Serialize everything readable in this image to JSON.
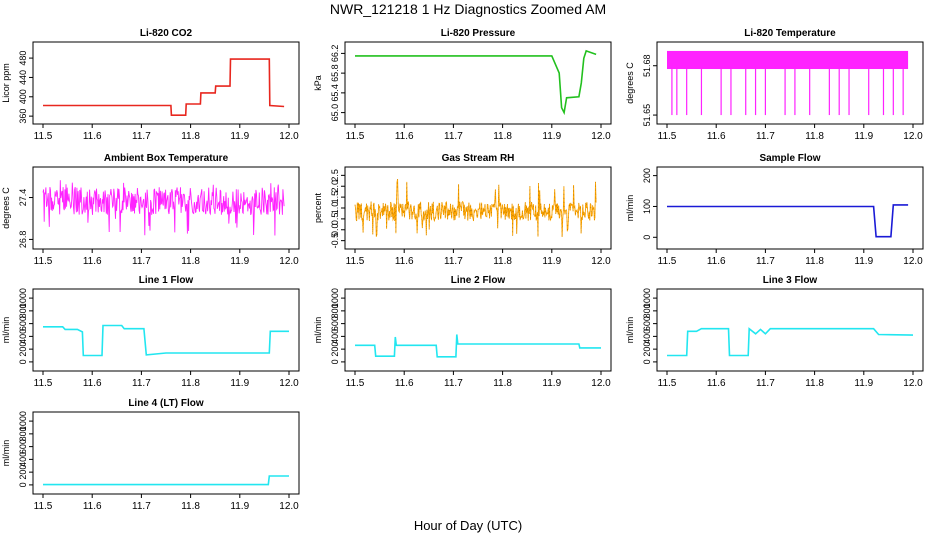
{
  "page": {
    "title": "NWR_121218  1 Hz Diagnostics Zoomed AM",
    "xlabel": "Hour of Day (UTC)"
  },
  "chart_data": [
    {
      "type": "line",
      "title": "Li-820 CO2",
      "ylabel": "Licor ppm",
      "color": "#e8271f",
      "xlim": [
        11.5,
        12.0
      ],
      "xticks": [
        11.5,
        11.6,
        11.7,
        11.8,
        11.9,
        12.0
      ],
      "ylim": [
        352,
        505
      ],
      "yticks": [
        360,
        400,
        440,
        480
      ],
      "x": [
        11.5,
        11.76,
        11.761,
        11.79,
        11.791,
        11.82,
        11.821,
        11.85,
        11.851,
        11.88,
        11.881,
        11.96,
        11.961,
        11.99
      ],
      "y": [
        382,
        382,
        362,
        362,
        385,
        385,
        408,
        408,
        422,
        422,
        478,
        478,
        382,
        380
      ]
    },
    {
      "type": "line",
      "title": "Li-820 Pressure",
      "ylabel": "kPa",
      "color": "#22c01e",
      "xlim": [
        11.5,
        12.0
      ],
      "xticks": [
        11.5,
        11.6,
        11.7,
        11.8,
        11.9,
        12.0
      ],
      "ylim": [
        64.85,
        66.35
      ],
      "yticks": [
        65.0,
        65.4,
        65.8,
        66.2
      ],
      "tick_labels": [
        "65.0",
        "65.4",
        "65.8",
        "66.2"
      ],
      "x": [
        11.5,
        11.9,
        11.915,
        11.92,
        11.925,
        11.93,
        11.955,
        11.96,
        11.965,
        11.97,
        11.99
      ],
      "y": [
        66.15,
        66.15,
        65.8,
        65.1,
        65.0,
        65.3,
        65.32,
        65.6,
        66.1,
        66.25,
        66.18
      ]
    },
    {
      "type": "line",
      "title": "Li-820 Temperature",
      "ylabel": "degrees C",
      "color": "#ff22ff",
      "xlim": [
        11.5,
        12.0
      ],
      "xticks": [
        11.5,
        11.6,
        11.7,
        11.8,
        11.9,
        12.0
      ],
      "ylim": [
        51.647,
        51.692
      ],
      "yticks": [
        51.65,
        51.68
      ],
      "tick_labels": [
        "51.65",
        "51.68"
      ],
      "x": [
        11.5,
        11.99
      ],
      "band_y": [
        51.678,
        51.689
      ],
      "dip_y": 51.65,
      "dip_x": [
        11.51,
        11.52,
        11.54,
        11.57,
        11.61,
        11.63,
        11.66,
        11.68,
        11.7,
        11.74,
        11.76,
        11.79,
        11.83,
        11.85,
        11.87,
        11.91,
        11.94,
        11.96,
        11.98
      ]
    },
    {
      "type": "line",
      "title": "Ambient Box Temperature",
      "ylabel": "degrees C",
      "color": "#ff22ff",
      "xlim": [
        11.5,
        12.0
      ],
      "xticks": [
        11.5,
        11.6,
        11.7,
        11.8,
        11.9,
        12.0
      ],
      "ylim": [
        26.72,
        27.78
      ],
      "yticks": [
        26.8,
        27.4
      ],
      "tick_labels": [
        "26.8",
        "27.4"
      ],
      "x": [
        11.5,
        11.99
      ],
      "band_y": [
        27.15,
        27.55
      ],
      "mean": 27.35,
      "min_y": 26.85,
      "max_y": 27.65
    },
    {
      "type": "line",
      "title": "Gas Stream RH",
      "ylabel": "percent",
      "color": "#ffa500",
      "xlim": [
        11.5,
        12.0
      ],
      "xticks": [
        11.5,
        11.6,
        11.7,
        11.8,
        11.9,
        12.0
      ],
      "ylim": [
        -0.7,
        2.7
      ],
      "yticks": [
        -0.5,
        0.0,
        0.5,
        1.0,
        1.5,
        2.0,
        2.5
      ],
      "tick_labels": [
        "-0.5",
        "0.0",
        "0.5",
        "1.0",
        "1.5",
        "2.0",
        "2.5"
      ],
      "x": [
        11.5,
        11.99
      ],
      "band_y": [
        0.4,
        1.3
      ],
      "mean": 0.85,
      "min_y": -0.4,
      "max_y": 2.4
    },
    {
      "type": "line",
      "title": "Sample Flow",
      "ylabel": "ml/min",
      "color": "#1a1ad6",
      "xlim": [
        11.5,
        12.0
      ],
      "xticks": [
        11.5,
        11.6,
        11.7,
        11.8,
        11.9,
        12.0
      ],
      "ylim": [
        -25,
        215
      ],
      "yticks": [
        0,
        100,
        200
      ],
      "x": [
        11.5,
        11.92,
        11.925,
        11.955,
        11.96,
        11.99
      ],
      "y": [
        100,
        100,
        2,
        2,
        105,
        105
      ]
    },
    {
      "type": "line",
      "title": "Line 1 Flow",
      "ylabel": "ml/min",
      "color": "#22e6f0",
      "xlim": [
        11.5,
        12.0
      ],
      "xticks": [
        11.5,
        11.6,
        11.7,
        11.8,
        11.9,
        12.0
      ],
      "ylim": [
        -80,
        1080
      ],
      "yticks": [
        0,
        200,
        400,
        600,
        800,
        1000
      ],
      "x": [
        11.5,
        11.54,
        11.545,
        11.57,
        11.58,
        11.582,
        11.62,
        11.622,
        11.66,
        11.665,
        11.705,
        11.71,
        11.75,
        11.96,
        11.962,
        12.0
      ],
      "y": [
        550,
        550,
        510,
        510,
        470,
        100,
        100,
        570,
        570,
        520,
        520,
        110,
        140,
        140,
        480,
        480
      ]
    },
    {
      "type": "line",
      "title": "Line 2 Flow",
      "ylabel": "ml/min",
      "color": "#22e6f0",
      "xlim": [
        11.5,
        12.0
      ],
      "xticks": [
        11.5,
        11.6,
        11.7,
        11.8,
        11.9,
        12.0
      ],
      "ylim": [
        -80,
        1080
      ],
      "yticks": [
        0,
        200,
        400,
        600,
        800,
        1000
      ],
      "x": [
        11.5,
        11.54,
        11.542,
        11.58,
        11.582,
        11.584,
        11.665,
        11.667,
        11.705,
        11.707,
        11.709,
        11.955,
        11.957,
        12.0
      ],
      "y": [
        260,
        260,
        90,
        90,
        390,
        260,
        260,
        80,
        80,
        430,
        280,
        280,
        220,
        220
      ]
    },
    {
      "type": "line",
      "title": "Line 3 Flow",
      "ylabel": "ml/min",
      "color": "#22e6f0",
      "xlim": [
        11.5,
        12.0
      ],
      "xticks": [
        11.5,
        11.6,
        11.7,
        11.8,
        11.9,
        12.0
      ],
      "ylim": [
        -80,
        1080
      ],
      "yticks": [
        0,
        200,
        400,
        600,
        800,
        1000
      ],
      "x": [
        11.5,
        11.54,
        11.542,
        11.56,
        11.57,
        11.625,
        11.627,
        11.665,
        11.667,
        11.68,
        11.69,
        11.7,
        11.71,
        11.92,
        11.93,
        12.0
      ],
      "y": [
        100,
        100,
        480,
        480,
        520,
        520,
        100,
        100,
        520,
        440,
        510,
        440,
        520,
        520,
        430,
        420
      ]
    },
    {
      "type": "line",
      "title": "Line 4 (LT) Flow",
      "ylabel": "ml/min",
      "color": "#22e6f0",
      "xlim": [
        11.5,
        12.0
      ],
      "xticks": [
        11.5,
        11.6,
        11.7,
        11.8,
        11.9,
        12.0
      ],
      "ylim": [
        -80,
        1080
      ],
      "yticks": [
        0,
        200,
        400,
        600,
        800,
        1000
      ],
      "x": [
        11.5,
        11.958,
        11.96,
        12.0
      ],
      "y": [
        5,
        5,
        140,
        140
      ]
    }
  ]
}
